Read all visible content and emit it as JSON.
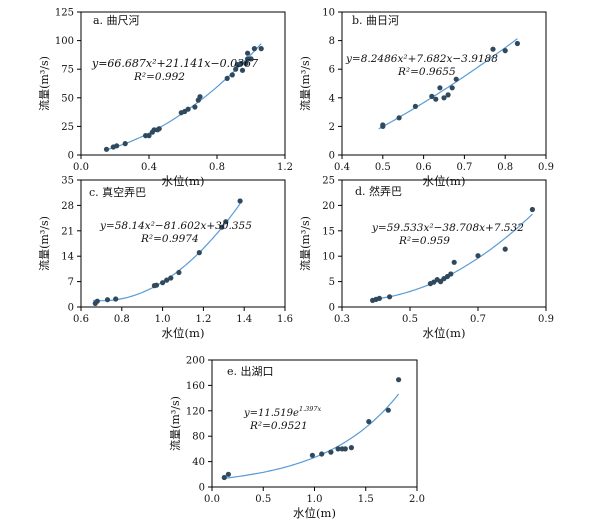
{
  "chart_data": [
    {
      "type": "scatter",
      "title": "a. 曲尺河",
      "xlabel": "水位(m)",
      "ylabel": "流量(m³/s)",
      "xlim": [
        0.0,
        1.2
      ],
      "ylim": [
        0,
        125
      ],
      "xticks": [
        0.0,
        0.4,
        0.8,
        1.2
      ],
      "yticks": [
        0,
        25,
        50,
        75,
        100,
        125
      ],
      "xtick_labels": [
        "0.0",
        "0.4",
        "0.8",
        "1.2"
      ],
      "ytick_labels": [
        "0",
        "25",
        "50",
        "75",
        "100",
        "125"
      ],
      "equation": "y=66.687x²+21.141x−0.0367",
      "r2": "R²=0.992",
      "fit": {
        "kind": "poly",
        "a": 66.687,
        "b": 21.141,
        "c": -0.0367,
        "x0": 0.15,
        "x1": 1.06
      },
      "points": [
        [
          0.15,
          5
        ],
        [
          0.19,
          7
        ],
        [
          0.21,
          8
        ],
        [
          0.26,
          10
        ],
        [
          0.38,
          17
        ],
        [
          0.4,
          17
        ],
        [
          0.42,
          20
        ],
        [
          0.43,
          22
        ],
        [
          0.45,
          22
        ],
        [
          0.46,
          23
        ],
        [
          0.59,
          37
        ],
        [
          0.61,
          38
        ],
        [
          0.63,
          40
        ],
        [
          0.67,
          42
        ],
        [
          0.69,
          48
        ],
        [
          0.7,
          51
        ],
        [
          0.86,
          67
        ],
        [
          0.89,
          70
        ],
        [
          0.91,
          75
        ],
        [
          0.92,
          79
        ],
        [
          0.94,
          80
        ],
        [
          0.95,
          74
        ],
        [
          0.97,
          80
        ],
        [
          0.98,
          84
        ],
        [
          0.98,
          89
        ],
        [
          1.0,
          84
        ],
        [
          1.02,
          93
        ],
        [
          1.06,
          93
        ]
      ]
    },
    {
      "type": "scatter",
      "title": "b. 曲日河",
      "xlabel": "水位(m)",
      "ylabel": "流量(m³/s)",
      "xlim": [
        0.4,
        0.9
      ],
      "ylim": [
        0,
        10
      ],
      "xticks": [
        0.4,
        0.5,
        0.6,
        0.7,
        0.8,
        0.9
      ],
      "yticks": [
        0,
        2,
        4,
        6,
        8,
        10
      ],
      "xtick_labels": [
        "0.4",
        "0.5",
        "0.6",
        "0.7",
        "0.8",
        "0.9"
      ],
      "ytick_labels": [
        "0",
        "2",
        "4",
        "6",
        "8",
        "10"
      ],
      "equation": "y=8.2486x²+7.682x−3.9188",
      "r2": "R²=0.9655",
      "fit": {
        "kind": "poly",
        "a": 8.2486,
        "b": 7.682,
        "c": -3.9188,
        "x0": 0.49,
        "x1": 0.83
      },
      "points": [
        [
          0.5,
          2.1
        ],
        [
          0.5,
          2.0
        ],
        [
          0.54,
          2.6
        ],
        [
          0.58,
          3.4
        ],
        [
          0.62,
          4.1
        ],
        [
          0.63,
          3.9
        ],
        [
          0.64,
          4.7
        ],
        [
          0.65,
          4.0
        ],
        [
          0.66,
          4.2
        ],
        [
          0.67,
          4.7
        ],
        [
          0.68,
          5.3
        ],
        [
          0.77,
          7.4
        ],
        [
          0.8,
          7.3
        ],
        [
          0.83,
          7.8
        ]
      ]
    },
    {
      "type": "scatter",
      "title": "c. 真空弄巴",
      "xlabel": "水位(m)",
      "ylabel": "流量(m³/s)",
      "xlim": [
        0.6,
        1.6
      ],
      "ylim": [
        0,
        35
      ],
      "xticks": [
        0.6,
        0.8,
        1.0,
        1.2,
        1.4,
        1.6
      ],
      "yticks": [
        0,
        7,
        14,
        21,
        28,
        35
      ],
      "xtick_labels": [
        "0.6",
        "0.8",
        "1.0",
        "1.2",
        "1.4",
        "1.6"
      ],
      "ytick_labels": [
        "0",
        "7",
        "14",
        "21",
        "28",
        "35"
      ],
      "equation": "y=58.14x²−81.602x+30.355",
      "r2": "R²=0.9974",
      "fit": {
        "kind": "poly",
        "a": 58.14,
        "b": -81.602,
        "c": 30.355,
        "x0": 0.66,
        "x1": 1.38
      },
      "points": [
        [
          0.67,
          1.0
        ],
        [
          0.68,
          1.6
        ],
        [
          0.73,
          2.0
        ],
        [
          0.77,
          2.2
        ],
        [
          0.96,
          5.9
        ],
        [
          0.97,
          6.0
        ],
        [
          1.0,
          6.7
        ],
        [
          1.02,
          7.4
        ],
        [
          1.04,
          8.0
        ],
        [
          1.08,
          9.5
        ],
        [
          1.18,
          15.0
        ],
        [
          1.29,
          22.0
        ],
        [
          1.31,
          23.5
        ],
        [
          1.38,
          29.2
        ]
      ]
    },
    {
      "type": "scatter",
      "title": "d. 然弄巴",
      "xlabel": "水位(m)",
      "ylabel": "流量(m³/s)",
      "xlim": [
        0.3,
        0.9
      ],
      "ylim": [
        0,
        25
      ],
      "xticks": [
        0.3,
        0.5,
        0.7,
        0.9
      ],
      "yticks": [
        0,
        5,
        10,
        15,
        20,
        25
      ],
      "xtick_labels": [
        "0.3",
        "0.5",
        "0.7",
        "0.9"
      ],
      "ytick_labels": [
        "0",
        "5",
        "10",
        "15",
        "20",
        "25"
      ],
      "equation": "y=59.533x²−38.708x+7.532",
      "r2": "R²=0.959",
      "fit": {
        "kind": "poly",
        "a": 59.533,
        "b": -38.708,
        "c": 7.532,
        "x0": 0.39,
        "x1": 0.86
      },
      "points": [
        [
          0.39,
          1.3
        ],
        [
          0.4,
          1.5
        ],
        [
          0.41,
          1.7
        ],
        [
          0.44,
          2.0
        ],
        [
          0.56,
          4.6
        ],
        [
          0.57,
          4.9
        ],
        [
          0.58,
          5.4
        ],
        [
          0.59,
          5.0
        ],
        [
          0.6,
          5.6
        ],
        [
          0.61,
          6.0
        ],
        [
          0.62,
          6.5
        ],
        [
          0.63,
          8.8
        ],
        [
          0.7,
          10.1
        ],
        [
          0.78,
          11.4
        ],
        [
          0.86,
          19.2
        ]
      ]
    },
    {
      "type": "scatter",
      "title": "e. 出湖口",
      "xlabel": "水位(m)",
      "ylabel": "流量(m³/s)",
      "xlim": [
        0.0,
        2.0
      ],
      "ylim": [
        0,
        200
      ],
      "xticks": [
        0.0,
        0.5,
        1.0,
        1.5,
        2.0
      ],
      "yticks": [
        0,
        40,
        80,
        120,
        160,
        200
      ],
      "xtick_labels": [
        "0.0",
        "0.5",
        "1.0",
        "1.5",
        "2.0"
      ],
      "ytick_labels": [
        "0",
        "40",
        "80",
        "120",
        "160",
        "200"
      ],
      "equation": "y=11.519e^1.397x",
      "r2": "R²=0.9521",
      "fit": {
        "kind": "exp",
        "a": 11.519,
        "b": 1.397,
        "x0": 0.1,
        "x1": 1.82
      },
      "points": [
        [
          0.12,
          15
        ],
        [
          0.16,
          20
        ],
        [
          0.98,
          50
        ],
        [
          1.07,
          52
        ],
        [
          1.16,
          55
        ],
        [
          1.23,
          60
        ],
        [
          1.27,
          60
        ],
        [
          1.3,
          60
        ],
        [
          1.36,
          62
        ],
        [
          1.53,
          103
        ],
        [
          1.72,
          121
        ],
        [
          1.82,
          169
        ]
      ]
    }
  ],
  "colors": {
    "point": "#2f4a5e",
    "fit": "#5b9bd5",
    "axis": "#000000"
  }
}
